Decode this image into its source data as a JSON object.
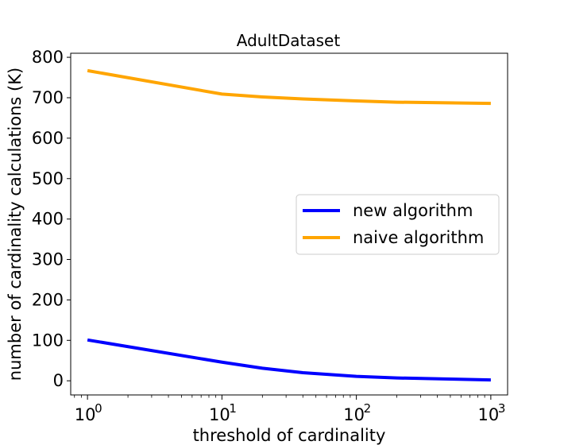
{
  "chart_data": {
    "type": "line",
    "title": "AdultDataset",
    "xlabel": "threshold of cardinality",
    "ylabel": "number of cardinality calculations (K)",
    "x_scale": "log",
    "xlim": [
      0.75,
      1333
    ],
    "ylim": [
      -35,
      810
    ],
    "x": [
      1,
      10,
      20,
      40,
      100,
      200,
      1000
    ],
    "x_ticks": [
      {
        "value": 1,
        "base": "10",
        "exp": "0"
      },
      {
        "value": 10,
        "base": "10",
        "exp": "1"
      },
      {
        "value": 100,
        "base": "10",
        "exp": "2"
      },
      {
        "value": 1000,
        "base": "10",
        "exp": "3"
      }
    ],
    "y_ticks": [
      0,
      100,
      200,
      300,
      400,
      500,
      600,
      700,
      800
    ],
    "series": [
      {
        "name": "new algorithm",
        "color": "#0000ff",
        "values": [
          101,
          46,
          31,
          20,
          11,
          7,
          2
        ]
      },
      {
        "name": "naive algorithm",
        "color": "#ffa500",
        "values": [
          767,
          709,
          702,
          697,
          692,
          689,
          686
        ]
      }
    ],
    "legend_position": "center-right",
    "grid": false
  }
}
